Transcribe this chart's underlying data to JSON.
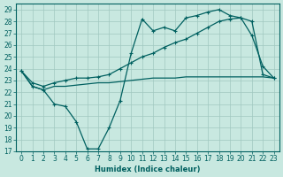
{
  "xlabel": "Humidex (Indice chaleur)",
  "bg_color": "#c8e8e0",
  "grid_color": "#a0c8c0",
  "line_color": "#006060",
  "xlim": [
    -0.5,
    23.5
  ],
  "ylim": [
    17,
    29.5
  ],
  "yticks": [
    17,
    18,
    19,
    20,
    21,
    22,
    23,
    24,
    25,
    26,
    27,
    28,
    29
  ],
  "xticks": [
    0,
    1,
    2,
    3,
    4,
    5,
    6,
    7,
    8,
    9,
    10,
    11,
    12,
    13,
    14,
    15,
    16,
    17,
    18,
    19,
    20,
    21,
    22,
    23
  ],
  "line1_x": [
    0,
    1,
    2,
    3,
    4,
    5,
    6,
    7,
    8,
    9,
    10,
    11,
    12,
    13,
    14,
    15,
    16,
    17,
    18,
    19,
    20,
    21,
    22,
    23
  ],
  "line1_y": [
    23.8,
    22.5,
    22.2,
    21.0,
    20.8,
    19.5,
    17.2,
    17.2,
    19.0,
    21.3,
    25.3,
    28.2,
    27.2,
    27.5,
    27.2,
    28.3,
    28.5,
    28.8,
    29.0,
    28.5,
    28.3,
    26.8,
    24.2,
    23.2
  ],
  "line2_x": [
    0,
    1,
    2,
    3,
    4,
    5,
    6,
    7,
    8,
    9,
    10,
    11,
    12,
    13,
    14,
    15,
    16,
    17,
    18,
    19,
    20,
    21,
    22,
    23
  ],
  "line2_y": [
    23.8,
    22.8,
    22.5,
    22.8,
    23.0,
    23.2,
    23.2,
    23.3,
    23.5,
    24.0,
    24.5,
    25.0,
    25.3,
    25.8,
    26.2,
    26.5,
    27.0,
    27.5,
    28.0,
    28.2,
    28.3,
    28.0,
    23.5,
    23.2
  ],
  "line3_x": [
    0,
    1,
    2,
    3,
    4,
    5,
    6,
    7,
    8,
    9,
    10,
    11,
    12,
    13,
    14,
    15,
    16,
    17,
    18,
    19,
    20,
    21,
    22,
    23
  ],
  "line3_y": [
    23.8,
    22.5,
    22.2,
    22.5,
    22.5,
    22.6,
    22.7,
    22.8,
    22.8,
    22.9,
    23.0,
    23.1,
    23.2,
    23.2,
    23.2,
    23.3,
    23.3,
    23.3,
    23.3,
    23.3,
    23.3,
    23.3,
    23.3,
    23.2
  ]
}
